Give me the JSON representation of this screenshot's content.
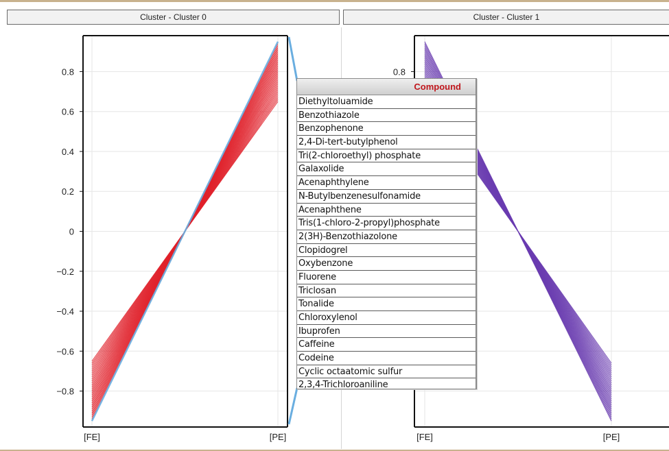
{
  "panels": [
    {
      "title": "Cluster - Cluster 0"
    },
    {
      "title": "Cluster - Cluster 1"
    }
  ],
  "colors": {
    "cluster0": "#e0202a",
    "cluster1": "#6a3cb0",
    "highlight": "#6aaee0",
    "grid": "#e6e6e6",
    "axis": "#111111"
  },
  "chart_data": [
    {
      "type": "line",
      "categories": [
        "[FE]",
        "[PE]"
      ],
      "yticks": [
        "0.8",
        "0.6",
        "0.4",
        "0.2",
        "0",
        "−0.2",
        "−0.4",
        "−0.6",
        "−0.8"
      ],
      "ylim": [
        -0.98,
        0.98
      ],
      "series_fe": [
        -0.94,
        -0.93,
        -0.92,
        -0.91,
        -0.9,
        -0.89,
        -0.88,
        -0.87,
        -0.86,
        -0.85,
        -0.84,
        -0.83,
        -0.82,
        -0.81,
        -0.8,
        -0.79,
        -0.78,
        -0.77,
        -0.76,
        -0.75,
        -0.74,
        -0.73,
        -0.72,
        -0.71,
        -0.7,
        -0.69,
        -0.68,
        -0.67,
        -0.66,
        -0.65
      ],
      "highlight_fe": -0.95
    },
    {
      "type": "line",
      "categories": [
        "[FE]",
        "[PE]"
      ],
      "yticks": [
        "0.8"
      ],
      "ylim": [
        -0.98,
        0.98
      ],
      "series_fe": [
        0.95,
        0.94,
        0.93,
        0.92,
        0.91,
        0.9,
        0.89,
        0.88,
        0.87,
        0.86,
        0.85,
        0.84,
        0.83,
        0.82,
        0.81,
        0.8,
        0.79,
        0.78,
        0.77,
        0.76,
        0.75,
        0.74,
        0.73,
        0.72,
        0.71,
        0.7,
        0.69,
        0.68,
        0.67,
        0.66
      ]
    }
  ],
  "table": {
    "header": "Compound",
    "rows": [
      "Diethyltoluamide",
      "Benzothiazole",
      "Benzophenone",
      "2,4-Di-tert-butylphenol",
      "Tri(2-chloroethyl) phosphate",
      "Galaxolide",
      "Acenaphthylene",
      "N-Butylbenzenesulfonamide",
      "Acenaphthene",
      "Tris(1-chloro-2-propyl)phosphate",
      "2(3H)-Benzothiazolone",
      "Clopidogrel",
      "Oxybenzone",
      "Fluorene",
      "Triclosan",
      "Tonalide",
      "Chloroxylenol",
      "Ibuprofen",
      "Caffeine",
      "Codeine",
      "Cyclic octaatomic sulfur",
      "2,3,4-Trichloroaniline"
    ]
  }
}
